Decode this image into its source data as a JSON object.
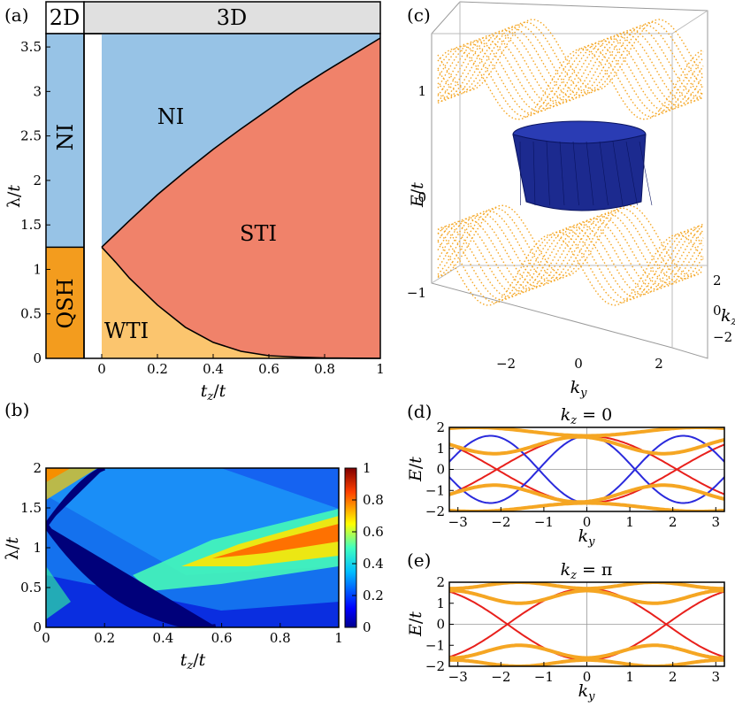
{
  "figure": {
    "panel_labels": {
      "a": "(a)",
      "b": "(b)",
      "c": "(c)",
      "d": "(d)",
      "e": "(e)"
    },
    "colors": {
      "ni": "#97c3e6",
      "sti": "#f0826a",
      "wti": "#fbc56e",
      "qsh": "#f39c1e",
      "header": "#e0e0e0",
      "orange": "#f5a623",
      "red": "#e8201c",
      "blue": "#2a2adc",
      "surface": "#1c2a8f"
    }
  },
  "chart_data": [
    {
      "id": "a",
      "type": "area",
      "title": "",
      "xlabel": "t_z/t",
      "ylabel": "λ/t",
      "xlim": [
        -0.2,
        1.0
      ],
      "ylim": [
        0,
        3.65
      ],
      "xticks": [
        0,
        0.2,
        0.4,
        0.6,
        0.8,
        1
      ],
      "xtick_labels": [
        "0",
        "0.2",
        "0.4",
        "0.6",
        "0.8",
        "1"
      ],
      "yticks": [
        0,
        0.5,
        1,
        1.5,
        2,
        2.5,
        3,
        3.5
      ],
      "ytick_labels": [
        "0",
        "0.5",
        "1",
        "1.5",
        "2",
        "2.5",
        "3",
        "3.5"
      ],
      "headers": [
        "2D",
        "3D"
      ],
      "region_labels": {
        "ni_2d": "NI",
        "qsh": "QSH",
        "ni_3d": "NI",
        "sti": "STI",
        "wti": "WTI"
      },
      "boundary_2d_lambda": 1.25,
      "upper_boundary": {
        "x": [
          0,
          0.1,
          0.2,
          0.3,
          0.4,
          0.5,
          0.6,
          0.7,
          0.8,
          0.9,
          1.0
        ],
        "y": [
          1.25,
          1.55,
          1.84,
          2.1,
          2.35,
          2.58,
          2.8,
          3.02,
          3.22,
          3.41,
          3.6
        ]
      },
      "lower_boundary": {
        "x": [
          0,
          0.05,
          0.1,
          0.2,
          0.3,
          0.4,
          0.5,
          0.6,
          0.7,
          0.8,
          0.9,
          1.0
        ],
        "y": [
          1.25,
          1.08,
          0.9,
          0.6,
          0.35,
          0.18,
          0.08,
          0.03,
          0.015,
          0.005,
          0.002,
          0
        ]
      }
    },
    {
      "id": "b",
      "type": "heatmap",
      "xlabel": "t_z/t",
      "ylabel": "λ/t",
      "xlim": [
        0,
        1
      ],
      "ylim": [
        0,
        2
      ],
      "xticks": [
        0,
        0.2,
        0.4,
        0.6,
        0.8,
        1
      ],
      "xtick_labels": [
        "0",
        "0.2",
        "0.4",
        "0.6",
        "0.8",
        "1"
      ],
      "yticks": [
        0,
        0.5,
        1,
        1.5,
        2
      ],
      "ytick_labels": [
        "0",
        "0.5",
        "1",
        "1.5",
        "2"
      ],
      "colorbar_ticks": [
        0,
        0.2,
        0.4,
        0.6,
        0.8,
        1
      ],
      "colorbar_labels": [
        "0",
        "0.2",
        "0.4",
        "0.6",
        "0.8",
        "1"
      ],
      "colorbar_range": [
        0,
        1
      ]
    },
    {
      "id": "c",
      "type": "scatter",
      "xlabel": "k_y",
      "ylabel": "E/t",
      "zlabel": "k_z",
      "ky_ticks": [
        "−2",
        "0",
        "2"
      ],
      "e_ticks": [
        "1",
        "0",
        "−1"
      ],
      "kz_ticks": [
        "2",
        "0",
        "−2"
      ]
    },
    {
      "id": "d",
      "type": "line",
      "title": "k_z = 0",
      "xlabel": "k_y",
      "ylabel": "E/t",
      "xlim": [
        -3.2,
        3.2
      ],
      "ylim": [
        -2,
        2
      ],
      "xticks": [
        -3,
        -2,
        -1,
        0,
        1,
        2,
        3
      ],
      "xtick_labels": [
        "−3",
        "−2",
        "−1",
        "0",
        "1",
        "2",
        "3"
      ],
      "yticks": [
        -2,
        -1,
        0,
        1,
        2
      ],
      "ytick_labels": [
        "−2",
        "−1",
        "0",
        "1",
        "2"
      ],
      "series": [
        {
          "name": "red",
          "color": "#e8201c"
        },
        {
          "name": "blue",
          "color": "#2a2adc"
        },
        {
          "name": "bulk",
          "color": "#f5a623"
        }
      ]
    },
    {
      "id": "e",
      "type": "line",
      "title": "k_z = π",
      "xlabel": "k_y",
      "ylabel": "E/t",
      "xlim": [
        -3.2,
        3.2
      ],
      "ylim": [
        -2,
        2
      ],
      "xticks": [
        -3,
        -2,
        -1,
        0,
        1,
        2,
        3
      ],
      "xtick_labels": [
        "−3",
        "−2",
        "−1",
        "0",
        "1",
        "2",
        "3"
      ],
      "yticks": [
        -2,
        -1,
        0,
        1,
        2
      ],
      "ytick_labels": [
        "−2",
        "−1",
        "0",
        "1",
        "2"
      ],
      "series": [
        {
          "name": "red",
          "color": "#e8201c"
        },
        {
          "name": "blue",
          "color": "#2a2adc"
        },
        {
          "name": "bulk",
          "color": "#f5a623"
        }
      ]
    }
  ]
}
